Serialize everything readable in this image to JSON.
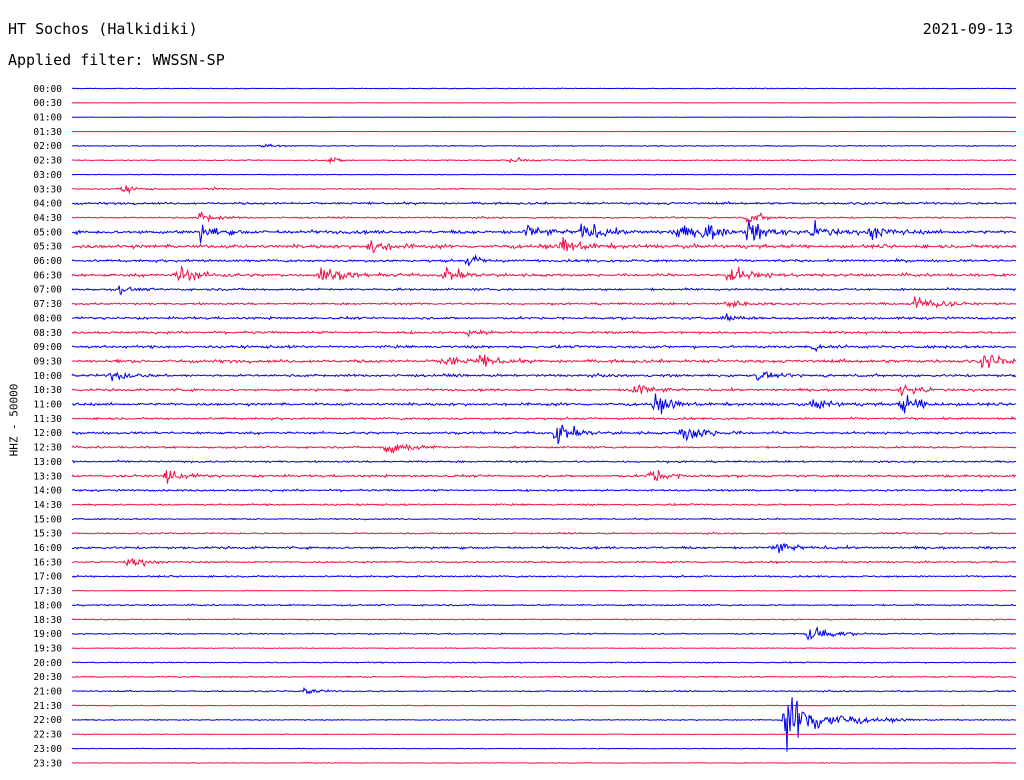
{
  "header": {
    "station": "HT Sochos (Halkidiki)",
    "filter": "Applied filter: WWSSN-SP",
    "date": "2021-09-13"
  },
  "chart_data": {
    "type": "line",
    "title": "HT Sochos (Halkidiki)",
    "subtitle": "Applied filter: WWSSN-SP",
    "date": "2021-09-13",
    "ylabel": "HHZ - 50000",
    "xlabel": "",
    "row_labels": [
      "00:00",
      "00:30",
      "01:00",
      "01:30",
      "02:00",
      "02:30",
      "03:00",
      "03:30",
      "04:00",
      "04:30",
      "05:00",
      "05:30",
      "06:00",
      "06:30",
      "07:00",
      "07:30",
      "08:00",
      "08:30",
      "09:00",
      "09:30",
      "10:00",
      "10:30",
      "11:00",
      "11:30",
      "12:00",
      "12:30",
      "13:00",
      "13:30",
      "14:00",
      "14:30",
      "15:00",
      "15:30",
      "16:00",
      "16:30",
      "17:00",
      "17:30",
      "18:00",
      "18:30",
      "19:00",
      "19:30",
      "20:00",
      "20:30",
      "21:00",
      "21:30",
      "22:00",
      "22:30",
      "23:00",
      "23:30"
    ],
    "trace_colors": [
      "#0000ee",
      "#ee1144"
    ],
    "row_minutes": 30,
    "noise_level": [
      0.35,
      0.15,
      0.2,
      0.12,
      0.45,
      0.5,
      0.35,
      0.5,
      1.0,
      0.7,
      1.6,
      1.6,
      1.1,
      1.3,
      1.0,
      1.0,
      1.1,
      1.1,
      1.2,
      1.4,
      1.2,
      1.1,
      1.2,
      1.0,
      1.1,
      0.9,
      0.9,
      1.1,
      0.9,
      0.8,
      0.6,
      0.7,
      1.1,
      0.8,
      0.8,
      0.3,
      0.7,
      0.6,
      0.6,
      0.35,
      0.5,
      0.6,
      0.6,
      0.35,
      0.45,
      0.3,
      0.35,
      0.3
    ],
    "events": [
      {
        "row": 4,
        "minute": 6.0,
        "amp": 2.5
      },
      {
        "row": 5,
        "minute": 8.2,
        "amp": 3.0
      },
      {
        "row": 5,
        "minute": 14.0,
        "amp": 3.5
      },
      {
        "row": 7,
        "minute": 1.6,
        "amp": 4.0
      },
      {
        "row": 7,
        "minute": 4.3,
        "amp": 3.0
      },
      {
        "row": 9,
        "minute": 4.1,
        "amp": 5.5
      },
      {
        "row": 9,
        "minute": 21.5,
        "amp": 6.0
      },
      {
        "row": 10,
        "minute": 4.1,
        "amp": 7.0
      },
      {
        "row": 10,
        "minute": 14.5,
        "amp": 7.0
      },
      {
        "row": 10,
        "minute": 16.2,
        "amp": 9.0
      },
      {
        "row": 10,
        "minute": 19.2,
        "amp": 7.0
      },
      {
        "row": 10,
        "minute": 20.1,
        "amp": 8.0
      },
      {
        "row": 10,
        "minute": 21.5,
        "amp": 9.0
      },
      {
        "row": 10,
        "minute": 23.6,
        "amp": 7.0
      },
      {
        "row": 10,
        "minute": 25.4,
        "amp": 7.0
      },
      {
        "row": 11,
        "minute": 9.5,
        "amp": 7.0
      },
      {
        "row": 11,
        "minute": 15.6,
        "amp": 8.0
      },
      {
        "row": 12,
        "minute": 12.6,
        "amp": 5.0
      },
      {
        "row": 13,
        "minute": 3.4,
        "amp": 9.0
      },
      {
        "row": 13,
        "minute": 7.9,
        "amp": 9.0
      },
      {
        "row": 13,
        "minute": 11.9,
        "amp": 7.0
      },
      {
        "row": 13,
        "minute": 20.9,
        "amp": 9.0
      },
      {
        "row": 14,
        "minute": 1.5,
        "amp": 3.5
      },
      {
        "row": 15,
        "minute": 20.8,
        "amp": 5.0
      },
      {
        "row": 15,
        "minute": 26.8,
        "amp": 10.0
      },
      {
        "row": 16,
        "minute": 20.8,
        "amp": 4.0
      },
      {
        "row": 17,
        "minute": 12.6,
        "amp": 4.0
      },
      {
        "row": 18,
        "minute": 23.6,
        "amp": 4.0
      },
      {
        "row": 19,
        "minute": 11.8,
        "amp": 6.0
      },
      {
        "row": 19,
        "minute": 13.0,
        "amp": 6.0
      },
      {
        "row": 19,
        "minute": 29.0,
        "amp": 8.0
      },
      {
        "row": 20,
        "minute": 1.3,
        "amp": 5.0
      },
      {
        "row": 20,
        "minute": 21.8,
        "amp": 4.0
      },
      {
        "row": 21,
        "minute": 17.8,
        "amp": 8.0
      },
      {
        "row": 21,
        "minute": 26.4,
        "amp": 6.0
      },
      {
        "row": 22,
        "minute": 18.5,
        "amp": 8.0
      },
      {
        "row": 22,
        "minute": 23.6,
        "amp": 6.0
      },
      {
        "row": 22,
        "minute": 26.4,
        "amp": 9.0
      },
      {
        "row": 24,
        "minute": 15.4,
        "amp": 10.0
      },
      {
        "row": 24,
        "minute": 19.4,
        "amp": 11.0
      },
      {
        "row": 25,
        "minute": 10.0,
        "amp": 9.0
      },
      {
        "row": 27,
        "minute": 3.0,
        "amp": 7.0
      },
      {
        "row": 27,
        "minute": 18.4,
        "amp": 7.0
      },
      {
        "row": 32,
        "minute": 22.3,
        "amp": 7.0
      },
      {
        "row": 33,
        "minute": 1.8,
        "amp": 6.0
      },
      {
        "row": 38,
        "minute": 23.4,
        "amp": 10.0
      },
      {
        "row": 42,
        "minute": 7.4,
        "amp": 3.5
      },
      {
        "row": 44,
        "minute": 22.7,
        "amp": 26.0
      }
    ]
  }
}
